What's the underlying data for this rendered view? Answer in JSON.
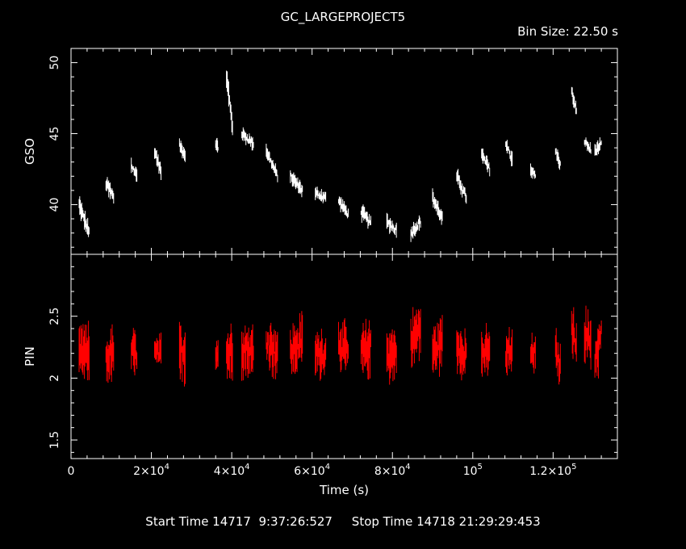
{
  "title": "GC_LARGEPROJECT5",
  "bin_size_label": "Bin Size: 22.50 s",
  "start_label": "Start Time 14717  9:37:26:527",
  "stop_label": "Stop Time 14718 21:29:29:453",
  "colors": {
    "background": "#000000",
    "axes": "#ffffff",
    "series_gso": "#ffffff",
    "series_pin": "#ff0000"
  },
  "chart_data": [
    {
      "type": "line",
      "panel": "top",
      "ylabel": "GSO",
      "xlim": [
        0,
        136000
      ],
      "ylim": [
        36.5,
        51
      ],
      "yticks": [
        40,
        45,
        50
      ],
      "ytick_labels": [
        "40",
        "45",
        "50"
      ],
      "series": [
        {
          "segments": [
            {
              "start": 2000,
              "end": 4500,
              "y0": 40.0,
              "y1": 38.0,
              "spread": 1.4
            },
            {
              "start": 8700,
              "end": 10600,
              "y0": 41.5,
              "y1": 40.5,
              "spread": 1.4
            },
            {
              "start": 15000,
              "end": 16400,
              "y0": 42.8,
              "y1": 42.0,
              "spread": 1.2
            },
            {
              "start": 20800,
              "end": 22400,
              "y0": 43.8,
              "y1": 42.3,
              "spread": 1.2
            },
            {
              "start": 27000,
              "end": 28400,
              "y0": 44.2,
              "y1": 43.5,
              "spread": 1.0
            },
            {
              "start": 36000,
              "end": 36600,
              "y0": 44.3,
              "y1": 44.0,
              "spread": 1.0
            },
            {
              "start": 38700,
              "end": 40200,
              "y0": 49.0,
              "y1": 45.5,
              "spread": 2.0
            },
            {
              "start": 42500,
              "end": 45400,
              "y0": 45.0,
              "y1": 44.3,
              "spread": 1.0
            },
            {
              "start": 48600,
              "end": 51400,
              "y0": 43.8,
              "y1": 42.0,
              "spread": 1.0
            },
            {
              "start": 54600,
              "end": 57600,
              "y0": 42.0,
              "y1": 41.0,
              "spread": 1.0
            },
            {
              "start": 60800,
              "end": 63400,
              "y0": 40.8,
              "y1": 40.5,
              "spread": 1.0
            },
            {
              "start": 66600,
              "end": 69000,
              "y0": 40.3,
              "y1": 39.3,
              "spread": 1.0
            },
            {
              "start": 72200,
              "end": 74600,
              "y0": 39.5,
              "y1": 38.7,
              "spread": 1.2
            },
            {
              "start": 78600,
              "end": 81000,
              "y0": 38.8,
              "y1": 38.2,
              "spread": 1.2
            },
            {
              "start": 84600,
              "end": 87000,
              "y0": 38.0,
              "y1": 38.8,
              "spread": 1.2
            },
            {
              "start": 90000,
              "end": 92400,
              "y0": 40.5,
              "y1": 39.0,
              "spread": 1.2
            },
            {
              "start": 96000,
              "end": 98400,
              "y0": 42.0,
              "y1": 40.5,
              "spread": 1.2
            },
            {
              "start": 102200,
              "end": 104200,
              "y0": 43.5,
              "y1": 42.5,
              "spread": 1.2
            },
            {
              "start": 108200,
              "end": 109800,
              "y0": 44.3,
              "y1": 43.2,
              "spread": 1.2
            },
            {
              "start": 114400,
              "end": 115600,
              "y0": 42.5,
              "y1": 42.0,
              "spread": 1.0
            },
            {
              "start": 120600,
              "end": 121800,
              "y0": 43.8,
              "y1": 42.8,
              "spread": 1.0
            },
            {
              "start": 124600,
              "end": 125800,
              "y0": 48.0,
              "y1": 46.5,
              "spread": 1.0
            },
            {
              "start": 127800,
              "end": 129400,
              "y0": 44.5,
              "y1": 43.8,
              "spread": 1.0
            },
            {
              "start": 130400,
              "end": 132000,
              "y0": 43.8,
              "y1": 44.2,
              "spread": 1.0
            }
          ]
        }
      ]
    },
    {
      "type": "line",
      "panel": "bottom",
      "xlabel": "Time (s)",
      "ylabel": "PIN",
      "xlim": [
        0,
        136000
      ],
      "ylim": [
        1.35,
        3.0
      ],
      "yticks": [
        1.5,
        2,
        2.5
      ],
      "ytick_labels": [
        "1.5",
        "2",
        "2.5"
      ],
      "xticks": [
        0,
        20000,
        40000,
        60000,
        80000,
        100000,
        120000
      ],
      "xtick_labels": [
        {
          "base": "0",
          "exp": ""
        },
        {
          "base": "2×10",
          "exp": "4"
        },
        {
          "base": "4×10",
          "exp": "4"
        },
        {
          "base": "6×10",
          "exp": "4"
        },
        {
          "base": "8×10",
          "exp": "4"
        },
        {
          "base": "10",
          "exp": "5"
        },
        {
          "base": "1.2×10",
          "exp": "5"
        }
      ],
      "series": [
        {
          "segments": [
            {
              "start": 2000,
              "end": 4500,
              "y0": 2.2,
              "y1": 2.2,
              "spread": 0.45
            },
            {
              "start": 8700,
              "end": 10600,
              "y0": 2.15,
              "y1": 2.2,
              "spread": 0.45
            },
            {
              "start": 15000,
              "end": 16400,
              "y0": 2.2,
              "y1": 2.2,
              "spread": 0.4
            },
            {
              "start": 20800,
              "end": 22400,
              "y0": 2.2,
              "y1": 2.2,
              "spread": 0.3
            },
            {
              "start": 27000,
              "end": 28400,
              "y0": 2.2,
              "y1": 2.2,
              "spread": 0.5
            },
            {
              "start": 36000,
              "end": 36600,
              "y0": 2.2,
              "y1": 2.2,
              "spread": 0.3
            },
            {
              "start": 38700,
              "end": 40200,
              "y0": 2.2,
              "y1": 2.2,
              "spread": 0.5
            },
            {
              "start": 42500,
              "end": 45400,
              "y0": 2.25,
              "y1": 2.2,
              "spread": 0.45
            },
            {
              "start": 48600,
              "end": 51400,
              "y0": 2.3,
              "y1": 2.2,
              "spread": 0.45
            },
            {
              "start": 54600,
              "end": 57600,
              "y0": 2.2,
              "y1": 2.3,
              "spread": 0.45
            },
            {
              "start": 60800,
              "end": 63400,
              "y0": 2.2,
              "y1": 2.2,
              "spread": 0.4
            },
            {
              "start": 66600,
              "end": 69000,
              "y0": 2.3,
              "y1": 2.2,
              "spread": 0.4
            },
            {
              "start": 72200,
              "end": 74600,
              "y0": 2.2,
              "y1": 2.25,
              "spread": 0.45
            },
            {
              "start": 78600,
              "end": 81000,
              "y0": 2.2,
              "y1": 2.2,
              "spread": 0.45
            },
            {
              "start": 84600,
              "end": 87000,
              "y0": 2.3,
              "y1": 2.4,
              "spread": 0.45
            },
            {
              "start": 90000,
              "end": 92400,
              "y0": 2.2,
              "y1": 2.3,
              "spread": 0.45
            },
            {
              "start": 96000,
              "end": 98400,
              "y0": 2.25,
              "y1": 2.2,
              "spread": 0.4
            },
            {
              "start": 102200,
              "end": 104200,
              "y0": 2.2,
              "y1": 2.2,
              "spread": 0.4
            },
            {
              "start": 108200,
              "end": 109800,
              "y0": 2.2,
              "y1": 2.2,
              "spread": 0.4
            },
            {
              "start": 114400,
              "end": 115600,
              "y0": 2.2,
              "y1": 2.2,
              "spread": 0.3
            },
            {
              "start": 120600,
              "end": 121800,
              "y0": 2.2,
              "y1": 2.1,
              "spread": 0.4
            },
            {
              "start": 124600,
              "end": 125800,
              "y0": 2.4,
              "y1": 2.3,
              "spread": 0.4
            },
            {
              "start": 127800,
              "end": 129400,
              "y0": 2.35,
              "y1": 2.3,
              "spread": 0.45
            },
            {
              "start": 130400,
              "end": 132000,
              "y0": 2.15,
              "y1": 2.35,
              "spread": 0.45
            }
          ]
        }
      ]
    }
  ]
}
